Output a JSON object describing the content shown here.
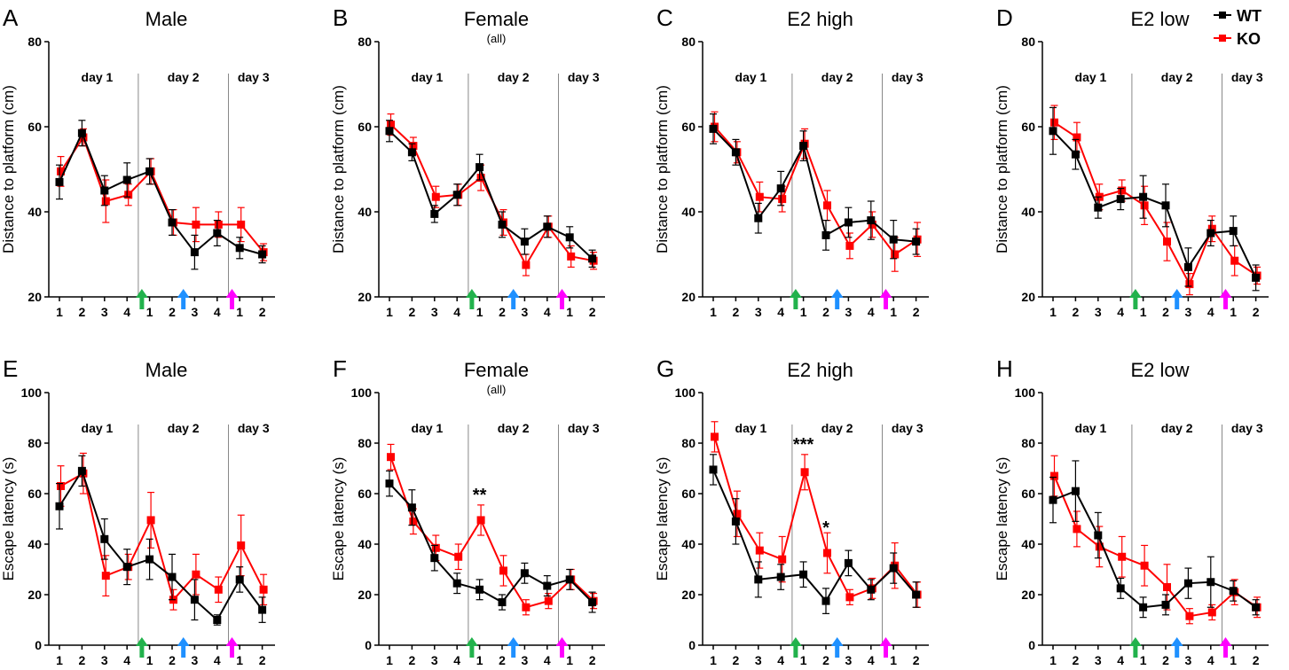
{
  "figure": {
    "legend": [
      {
        "label": "WT",
        "color": "#000000"
      },
      {
        "label": "KO",
        "color": "#ff0000"
      }
    ],
    "x_tick_labels": [
      "1",
      "2",
      "3",
      "4",
      "1",
      "2",
      "3",
      "4",
      "1",
      "2"
    ],
    "day_labels": [
      "day 1",
      "day 2",
      "day 3"
    ],
    "arrow_colors": [
      "#22b24c",
      "#1e90ff",
      "#ff00ff"
    ]
  },
  "chart_data": [
    {
      "type": "line",
      "letter": "A",
      "title": "Male",
      "subtitle": "",
      "ylabel": "Distance to platform (cm)",
      "ylim": [
        20,
        80
      ],
      "yticks": [
        20,
        40,
        60,
        80
      ],
      "x": [
        1,
        2,
        3,
        4,
        5,
        6,
        7,
        8,
        9,
        10
      ],
      "series": [
        {
          "name": "WT",
          "color": "#000000",
          "values": [
            47,
            58.5,
            45,
            47.5,
            49.5,
            37.5,
            30.5,
            35,
            31.5,
            30
          ],
          "errors": [
            4,
            3,
            3.5,
            4,
            3,
            3,
            4,
            3,
            2.5,
            2
          ]
        },
        {
          "name": "KO",
          "color": "#ff0000",
          "values": [
            49.5,
            57.5,
            42.5,
            44,
            49.5,
            37.5,
            37,
            37,
            37,
            30.5
          ],
          "errors": [
            3.5,
            2,
            5,
            2.5,
            3,
            3,
            4,
            3,
            4,
            2
          ]
        }
      ],
      "annotations": []
    },
    {
      "type": "line",
      "letter": "B",
      "title": "Female",
      "subtitle": "(all)",
      "ylabel": "Distance to platform (cm)",
      "ylim": [
        20,
        80
      ],
      "yticks": [
        20,
        40,
        60,
        80
      ],
      "x": [
        1,
        2,
        3,
        4,
        5,
        6,
        7,
        8,
        9,
        10
      ],
      "series": [
        {
          "name": "WT",
          "color": "#000000",
          "values": [
            59,
            54,
            39.5,
            44,
            50.5,
            37,
            33,
            36.5,
            34,
            29
          ],
          "errors": [
            2.5,
            2,
            2,
            2.5,
            3,
            3,
            3,
            2.5,
            2.5,
            2
          ]
        },
        {
          "name": "KO",
          "color": "#ff0000",
          "values": [
            60.5,
            55.5,
            43.5,
            44,
            48,
            37.5,
            27.5,
            36.5,
            29.5,
            28.5
          ],
          "errors": [
            2.5,
            2,
            2.5,
            2.5,
            3,
            3,
            2.5,
            2.5,
            2.5,
            2
          ]
        }
      ],
      "annotations": []
    },
    {
      "type": "line",
      "letter": "C",
      "title": "E2 high",
      "subtitle": "",
      "ylabel": "Distance to platform (cm)",
      "ylim": [
        20,
        80
      ],
      "yticks": [
        20,
        40,
        60,
        80
      ],
      "x": [
        1,
        2,
        3,
        4,
        5,
        6,
        7,
        8,
        9,
        10
      ],
      "series": [
        {
          "name": "WT",
          "color": "#000000",
          "values": [
            59.5,
            54,
            38.5,
            45.5,
            55.5,
            34.5,
            37.5,
            38,
            33.5,
            33
          ],
          "errors": [
            3.5,
            3,
            3.5,
            4,
            3.5,
            3.5,
            3.5,
            4.5,
            4.5,
            3
          ]
        },
        {
          "name": "KO",
          "color": "#ff0000",
          "values": [
            60,
            54,
            43.5,
            43,
            56,
            41.5,
            32,
            37,
            30,
            33.5
          ],
          "errors": [
            3.5,
            2.5,
            3.5,
            3,
            3.5,
            3.5,
            3,
            3,
            4,
            4
          ]
        }
      ],
      "annotations": []
    },
    {
      "type": "line",
      "letter": "D",
      "title": "E2 low",
      "subtitle": "",
      "ylabel": "Distance to platform (cm)",
      "ylim": [
        20,
        80
      ],
      "yticks": [
        20,
        40,
        60,
        80
      ],
      "x": [
        1,
        2,
        3,
        4,
        5,
        6,
        7,
        8,
        9,
        10
      ],
      "series": [
        {
          "name": "WT",
          "color": "#000000",
          "values": [
            59,
            53.5,
            41,
            43,
            43.5,
            41.5,
            27,
            35,
            35.5,
            24.5
          ],
          "errors": [
            5.5,
            3.5,
            2.5,
            2.5,
            5,
            5,
            4.5,
            3,
            3.5,
            3
          ]
        },
        {
          "name": "KO",
          "color": "#ff0000",
          "values": [
            61,
            57.5,
            43.5,
            45,
            41.5,
            33,
            23,
            36,
            28.5,
            25
          ],
          "errors": [
            4,
            3.5,
            3,
            2.5,
            4.5,
            4.5,
            2.5,
            3,
            3.5,
            2
          ]
        }
      ],
      "annotations": []
    },
    {
      "type": "line",
      "letter": "E",
      "title": "Male",
      "subtitle": "",
      "ylabel": "Escape latency (s)",
      "ylim": [
        0,
        100
      ],
      "yticks": [
        0,
        20,
        40,
        60,
        80,
        100
      ],
      "x": [
        1,
        2,
        3,
        4,
        5,
        6,
        7,
        8,
        9,
        10
      ],
      "series": [
        {
          "name": "WT",
          "color": "#000000",
          "values": [
            55,
            69,
            42,
            31,
            34,
            27,
            18,
            10,
            26,
            14
          ],
          "errors": [
            9,
            6,
            8,
            7,
            8,
            9,
            8,
            2,
            5,
            5
          ]
        },
        {
          "name": "KO",
          "color": "#ff0000",
          "values": [
            63,
            68,
            27.5,
            31,
            49.5,
            18,
            28,
            22,
            39.5,
            22
          ],
          "errors": [
            8,
            8,
            8,
            5,
            11,
            4,
            8,
            5,
            12,
            6
          ]
        }
      ],
      "annotations": []
    },
    {
      "type": "line",
      "letter": "F",
      "title": "Female",
      "subtitle": "(all)",
      "ylabel": "Escape latency (s)",
      "ylim": [
        0,
        100
      ],
      "yticks": [
        0,
        20,
        40,
        60,
        80,
        100
      ],
      "x": [
        1,
        2,
        3,
        4,
        5,
        6,
        7,
        8,
        9,
        10
      ],
      "series": [
        {
          "name": "WT",
          "color": "#000000",
          "values": [
            64,
            54.5,
            34.5,
            24.5,
            22,
            17,
            28.5,
            23.5,
            26,
            17
          ],
          "errors": [
            5,
            7,
            5,
            4,
            4,
            3,
            4,
            4,
            4,
            4
          ]
        },
        {
          "name": "KO",
          "color": "#ff0000",
          "values": [
            74.5,
            49,
            38.5,
            35,
            49.5,
            29.5,
            15,
            17.5,
            26,
            17.5
          ],
          "errors": [
            5,
            5,
            5,
            5,
            6,
            6,
            3,
            3,
            4,
            3
          ]
        }
      ],
      "annotations": [
        {
          "x": 5,
          "y": 60,
          "text": "**"
        }
      ]
    },
    {
      "type": "line",
      "letter": "G",
      "title": "E2 high",
      "subtitle": "",
      "ylabel": "Escape latency (s)",
      "ylim": [
        0,
        100
      ],
      "yticks": [
        0,
        20,
        40,
        60,
        80,
        100
      ],
      "x": [
        1,
        2,
        3,
        4,
        5,
        6,
        7,
        8,
        9,
        10
      ],
      "series": [
        {
          "name": "WT",
          "color": "#000000",
          "values": [
            69.5,
            49,
            26,
            27,
            28,
            17.5,
            32.5,
            22,
            30.5,
            20
          ],
          "errors": [
            6,
            9,
            7,
            5,
            5,
            5,
            5,
            4,
            6,
            5
          ]
        },
        {
          "name": "KO",
          "color": "#ff0000",
          "values": [
            82.5,
            52,
            37.5,
            34,
            68.5,
            36.5,
            19,
            22.5,
            31.5,
            20
          ],
          "errors": [
            6,
            9,
            7,
            9,
            7,
            8,
            3,
            4,
            9,
            5
          ]
        }
      ],
      "annotations": [
        {
          "x": 5,
          "y": 80,
          "text": "***"
        },
        {
          "x": 6,
          "y": 47,
          "text": "*"
        }
      ]
    },
    {
      "type": "line",
      "letter": "H",
      "title": "E2 low",
      "subtitle": "",
      "ylabel": "Escape latency (s)",
      "ylim": [
        0,
        100
      ],
      "yticks": [
        0,
        20,
        40,
        60,
        80,
        100
      ],
      "x": [
        1,
        2,
        3,
        4,
        5,
        6,
        7,
        8,
        9,
        10
      ],
      "series": [
        {
          "name": "WT",
          "color": "#000000",
          "values": [
            57.5,
            61,
            43.5,
            22.5,
            15,
            16,
            24.5,
            25,
            21.5,
            15
          ],
          "errors": [
            9,
            12,
            9,
            4,
            4,
            4,
            6,
            10,
            4,
            3
          ]
        },
        {
          "name": "KO",
          "color": "#ff0000",
          "values": [
            67,
            46,
            39,
            35,
            31.5,
            23,
            11.5,
            13,
            21,
            15
          ],
          "errors": [
            8,
            7,
            8,
            8,
            8,
            9,
            3,
            3,
            5,
            4
          ]
        }
      ],
      "annotations": []
    }
  ]
}
